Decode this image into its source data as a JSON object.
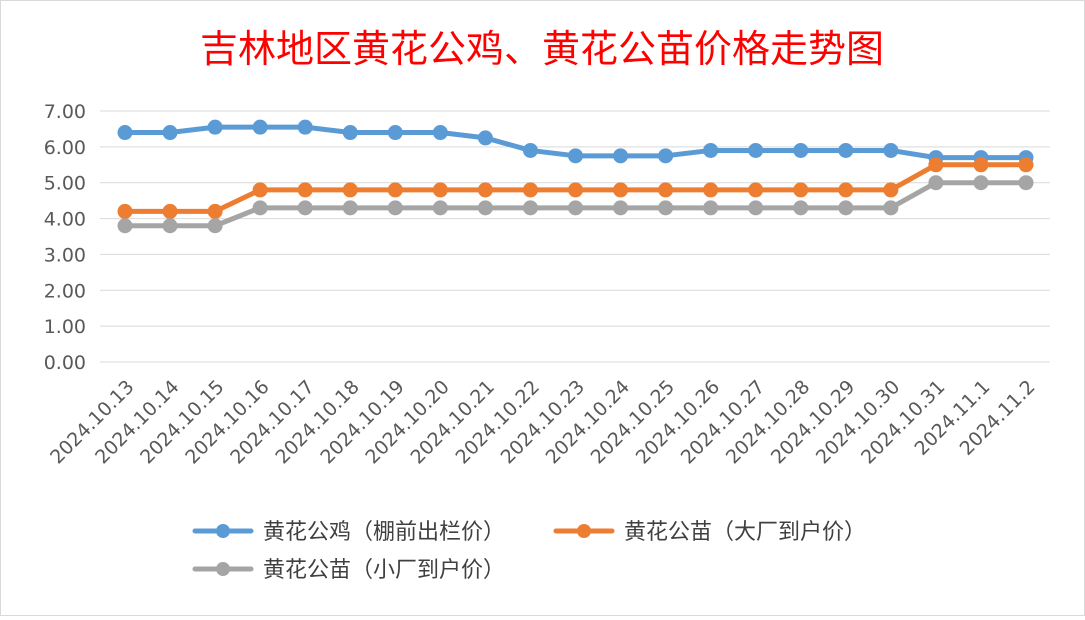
{
  "chart_data": {
    "type": "line",
    "title": "吉林地区黄花公鸡、黄花公苗价格走势图",
    "title_color": "#ff0000",
    "categories": [
      "2024.10.13",
      "2024.10.14",
      "2024.10.15",
      "2024.10.16",
      "2024.10.17",
      "2024.10.18",
      "2024.10.19",
      "2024.10.20",
      "2024.10.21",
      "2024.10.22",
      "2024.10.23",
      "2024.10.24",
      "2024.10.25",
      "2024.10.26",
      "2024.10.27",
      "2024.10.28",
      "2024.10.29",
      "2024.10.30",
      "2024.10.31",
      "2024.11.1",
      "2024.11.2"
    ],
    "series": [
      {
        "name": "黄花公鸡（棚前出栏价）",
        "color": "#5b9bd5",
        "values": [
          6.4,
          6.4,
          6.55,
          6.55,
          6.55,
          6.4,
          6.4,
          6.4,
          6.25,
          5.9,
          5.75,
          5.75,
          5.75,
          5.9,
          5.9,
          5.9,
          5.9,
          5.9,
          5.7,
          5.7,
          5.7
        ]
      },
      {
        "name": "黄花公苗（大厂到户价）",
        "color": "#ed7d31",
        "values": [
          4.2,
          4.2,
          4.2,
          4.8,
          4.8,
          4.8,
          4.8,
          4.8,
          4.8,
          4.8,
          4.8,
          4.8,
          4.8,
          4.8,
          4.8,
          4.8,
          4.8,
          4.8,
          5.5,
          5.5,
          5.5
        ]
      },
      {
        "name": "黄花公苗（小厂到户价）",
        "color": "#a5a5a5",
        "values": [
          3.8,
          3.8,
          3.8,
          4.3,
          4.3,
          4.3,
          4.3,
          4.3,
          4.3,
          4.3,
          4.3,
          4.3,
          4.3,
          4.3,
          4.3,
          4.3,
          4.3,
          4.3,
          5.0,
          5.0,
          5.0
        ]
      }
    ],
    "y_ticks": [
      "0.00",
      "1.00",
      "2.00",
      "3.00",
      "4.00",
      "5.00",
      "6.00",
      "7.00"
    ],
    "ylim": [
      0,
      7
    ],
    "grid": true,
    "legend_position": "bottom"
  }
}
